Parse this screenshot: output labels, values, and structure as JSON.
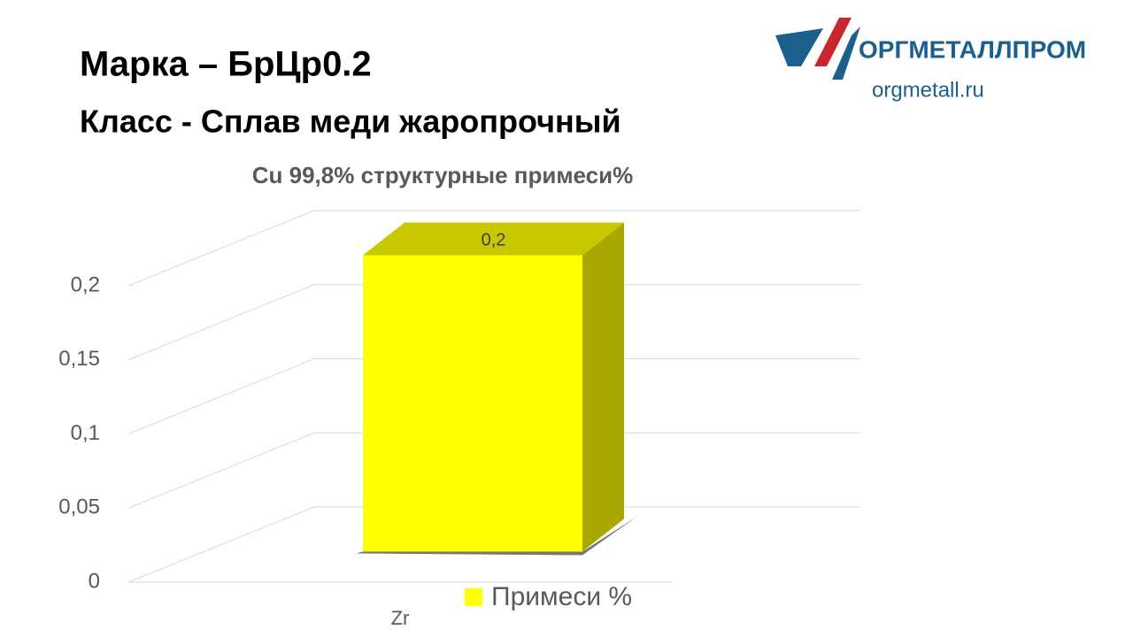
{
  "header": {
    "title": "Марка – БрЦр0.2",
    "subtitle": "Класс - Сплав меди жаропрочный"
  },
  "logo": {
    "name": "ОРГМЕТАЛЛПРОМ",
    "site": "orgmetall.ru"
  },
  "chart_data": {
    "type": "bar3d",
    "title": "Cu 99,8% структурные примеси%",
    "categories": [
      "Zr"
    ],
    "series": [
      {
        "name": "Примеси %",
        "color": "#ffff00",
        "values": [
          0.2
        ],
        "value_labels": [
          "0,2"
        ]
      }
    ],
    "ylim": [
      0,
      0.2
    ],
    "yticks": [
      0,
      {
        "value": 0.05,
        "label": "0,05"
      },
      {
        "value": 0.1,
        "label": "0,1"
      },
      {
        "value": 0.15,
        "label": "0,15"
      },
      {
        "value": 0.2,
        "label": "0,2"
      }
    ],
    "grid": true
  }
}
